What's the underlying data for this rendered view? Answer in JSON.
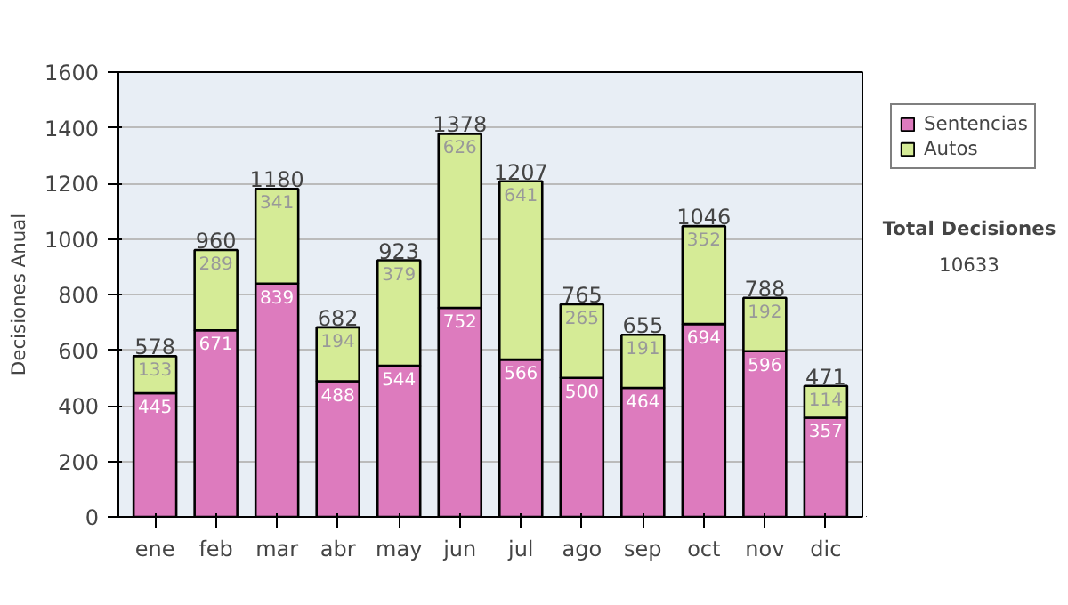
{
  "chart_data": {
    "type": "bar",
    "stacked": true,
    "ylabel": "Decisiones Anual",
    "categories": [
      "ene",
      "feb",
      "mar",
      "abr",
      "may",
      "jun",
      "jul",
      "ago",
      "sep",
      "oct",
      "nov",
      "dic"
    ],
    "series": [
      {
        "name": "Sentencias",
        "color": "#dd7bbe",
        "values": [
          445,
          671,
          839,
          488,
          544,
          752,
          566,
          500,
          464,
          694,
          596,
          357
        ]
      },
      {
        "name": "Autos",
        "color": "#d5eb96",
        "values": [
          133,
          289,
          341,
          194,
          379,
          626,
          641,
          265,
          191,
          352,
          192,
          114
        ]
      }
    ],
    "totals": [
      "578",
      "960",
      "1180",
      "682",
      "923",
      "1378",
      "1207",
      "765",
      "655",
      "1046",
      "788",
      "471"
    ],
    "data_labels": true,
    "ylim": [
      0,
      1600
    ],
    "yticks": [
      0,
      200,
      400,
      600,
      800,
      1000,
      1200,
      1400,
      1600
    ],
    "grid": "y",
    "legend": "right",
    "annotations": [
      "Total Decisiones",
      "10633"
    ]
  }
}
